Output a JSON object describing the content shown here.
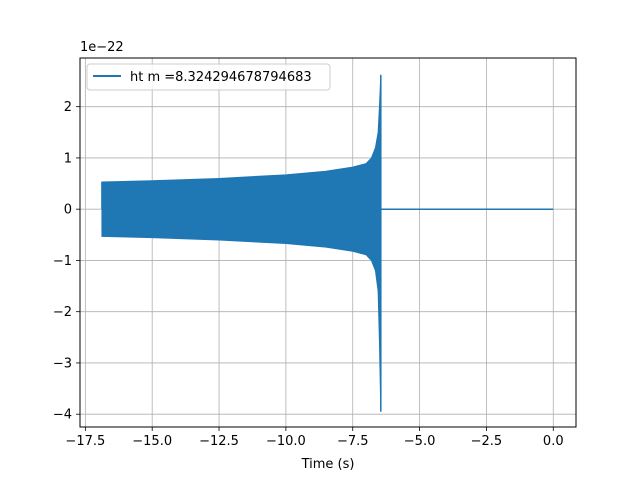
{
  "chart_data": {
    "type": "line",
    "title": "",
    "xlabel": "Time (s)",
    "ylabel": "",
    "scale_label": "1e−22",
    "grid": true,
    "legend": {
      "placement": "upper-left",
      "entries": [
        "ht m =8.324294678794683"
      ]
    },
    "xlim": [
      -17.7,
      0.85
    ],
    "ylim": [
      -4.25,
      2.95
    ],
    "xticks": [
      -17.5,
      -15.0,
      -12.5,
      -10.0,
      -7.5,
      -5.0,
      -2.5,
      0.0
    ],
    "xtick_labels": [
      "−17.5",
      "−15.0",
      "−12.5",
      "−10.0",
      "−7.5",
      "−5.0",
      "−2.5",
      "0.0"
    ],
    "yticks": [
      -4,
      -3,
      -2,
      -1,
      0,
      1,
      2
    ],
    "ytick_labels": [
      "−4",
      "−3",
      "−2",
      "−1",
      "0",
      "1",
      "2"
    ],
    "series": [
      {
        "name": "ht m =8.324294678794683",
        "color": "#1f77b4",
        "signal": {
          "start": -16.88,
          "merger": -6.45,
          "end": 0.0,
          "envelope": [
            [
              -16.88,
              0.53,
              -0.53
            ],
            [
              -15.0,
              0.555,
              -0.555
            ],
            [
              -12.5,
              0.6,
              -0.6
            ],
            [
              -10.0,
              0.67,
              -0.67
            ],
            [
              -8.5,
              0.74,
              -0.74
            ],
            [
              -7.5,
              0.82,
              -0.82
            ],
            [
              -7.0,
              0.89,
              -0.89
            ],
            [
              -6.8,
              1.0,
              -1.0
            ],
            [
              -6.65,
              1.2,
              -1.2
            ],
            [
              -6.55,
              1.5,
              -1.6
            ],
            [
              -6.5,
              2.0,
              -2.6
            ],
            [
              -6.45,
              2.62,
              -3.95
            ]
          ],
          "post_merger_value": 0.0
        }
      }
    ]
  }
}
